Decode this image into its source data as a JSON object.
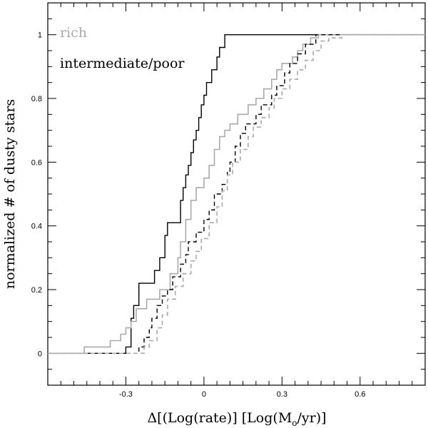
{
  "chart_data": {
    "type": "line",
    "xlabel_parts": [
      "Δ[(Log(rate)] [Log(M",
      "o",
      "/yr)]"
    ],
    "ylabel": "normalized # of dusty stars",
    "xlim": [
      -0.6,
      0.85
    ],
    "ylim": [
      -0.1,
      1.1
    ],
    "x_ticks": [
      -0.3,
      0,
      0.3,
      0.6
    ],
    "x_tick_labels": [
      "-0.3",
      "0",
      "0.3",
      "0.6"
    ],
    "y_ticks": [
      0,
      0.2,
      0.4,
      0.6,
      0.8,
      1
    ],
    "y_tick_labels": [
      "0",
      "0.2",
      "0.4",
      "0.6",
      "0.8",
      "1"
    ],
    "legend": [
      {
        "label": "rich",
        "color": "#aaaaaa"
      },
      {
        "label": "intermediate/poor",
        "color": "#000000"
      }
    ],
    "series": [
      {
        "label_ref": "intermediate/poor",
        "color": "#000000",
        "style": "solid",
        "points": [
          [
            -0.6,
            0
          ],
          [
            -0.3,
            0
          ],
          [
            -0.3,
            0.02
          ],
          [
            -0.28,
            0.02
          ],
          [
            -0.28,
            0.11
          ],
          [
            -0.27,
            0.11
          ],
          [
            -0.27,
            0.15
          ],
          [
            -0.25,
            0.15
          ],
          [
            -0.25,
            0.22
          ],
          [
            -0.19,
            0.22
          ],
          [
            -0.19,
            0.26
          ],
          [
            -0.17,
            0.26
          ],
          [
            -0.17,
            0.3
          ],
          [
            -0.15,
            0.3
          ],
          [
            -0.15,
            0.37
          ],
          [
            -0.14,
            0.37
          ],
          [
            -0.14,
            0.41
          ],
          [
            -0.09,
            0.41
          ],
          [
            -0.09,
            0.48
          ],
          [
            -0.08,
            0.48
          ],
          [
            -0.08,
            0.52
          ],
          [
            -0.07,
            0.52
          ],
          [
            -0.07,
            0.56
          ],
          [
            -0.06,
            0.56
          ],
          [
            -0.06,
            0.59
          ],
          [
            -0.05,
            0.59
          ],
          [
            -0.05,
            0.63
          ],
          [
            -0.04,
            0.63
          ],
          [
            -0.04,
            0.67
          ],
          [
            -0.03,
            0.67
          ],
          [
            -0.03,
            0.7
          ],
          [
            -0.02,
            0.7
          ],
          [
            -0.02,
            0.74
          ],
          [
            -0.01,
            0.74
          ],
          [
            -0.01,
            0.78
          ],
          [
            0.0,
            0.78
          ],
          [
            0.0,
            0.81
          ],
          [
            0.01,
            0.81
          ],
          [
            0.01,
            0.85
          ],
          [
            0.03,
            0.85
          ],
          [
            0.03,
            0.89
          ],
          [
            0.05,
            0.89
          ],
          [
            0.05,
            0.93
          ],
          [
            0.06,
            0.93
          ],
          [
            0.06,
            0.96
          ],
          [
            0.08,
            0.96
          ],
          [
            0.08,
            1.0
          ],
          [
            0.85,
            1.0
          ]
        ]
      },
      {
        "label_ref": "rich",
        "color": "#aaaaaa",
        "style": "solid",
        "points": [
          [
            -0.6,
            0
          ],
          [
            -0.46,
            0
          ],
          [
            -0.46,
            0.02
          ],
          [
            -0.36,
            0.02
          ],
          [
            -0.36,
            0.04
          ],
          [
            -0.32,
            0.04
          ],
          [
            -0.32,
            0.06
          ],
          [
            -0.3,
            0.06
          ],
          [
            -0.3,
            0.08
          ],
          [
            -0.28,
            0.08
          ],
          [
            -0.28,
            0.1
          ],
          [
            -0.26,
            0.1
          ],
          [
            -0.26,
            0.14
          ],
          [
            -0.22,
            0.14
          ],
          [
            -0.22,
            0.17
          ],
          [
            -0.17,
            0.17
          ],
          [
            -0.17,
            0.2
          ],
          [
            -0.13,
            0.2
          ],
          [
            -0.13,
            0.25
          ],
          [
            -0.1,
            0.25
          ],
          [
            -0.1,
            0.3
          ],
          [
            -0.09,
            0.3
          ],
          [
            -0.09,
            0.35
          ],
          [
            -0.07,
            0.35
          ],
          [
            -0.07,
            0.42
          ],
          [
            -0.05,
            0.42
          ],
          [
            -0.05,
            0.48
          ],
          [
            -0.03,
            0.48
          ],
          [
            -0.03,
            0.52
          ],
          [
            0.0,
            0.52
          ],
          [
            0.0,
            0.55
          ],
          [
            0.02,
            0.55
          ],
          [
            0.02,
            0.59
          ],
          [
            0.04,
            0.59
          ],
          [
            0.04,
            0.64
          ],
          [
            0.06,
            0.64
          ],
          [
            0.06,
            0.68
          ],
          [
            0.08,
            0.68
          ],
          [
            0.08,
            0.7
          ],
          [
            0.1,
            0.7
          ],
          [
            0.1,
            0.72
          ],
          [
            0.13,
            0.72
          ],
          [
            0.13,
            0.75
          ],
          [
            0.17,
            0.75
          ],
          [
            0.17,
            0.78
          ],
          [
            0.2,
            0.78
          ],
          [
            0.2,
            0.8
          ],
          [
            0.23,
            0.8
          ],
          [
            0.23,
            0.83
          ],
          [
            0.26,
            0.83
          ],
          [
            0.26,
            0.86
          ],
          [
            0.28,
            0.86
          ],
          [
            0.28,
            0.89
          ],
          [
            0.3,
            0.89
          ],
          [
            0.3,
            0.91
          ],
          [
            0.34,
            0.91
          ],
          [
            0.34,
            0.93
          ],
          [
            0.36,
            0.93
          ],
          [
            0.36,
            0.95
          ],
          [
            0.38,
            0.95
          ],
          [
            0.38,
            0.97
          ],
          [
            0.41,
            0.97
          ],
          [
            0.41,
            0.99
          ],
          [
            0.44,
            0.99
          ],
          [
            0.44,
            1.0
          ],
          [
            0.85,
            1.0
          ]
        ]
      },
      {
        "label_ref": "intermediate/poor",
        "color": "#000000",
        "style": "dashed",
        "points": [
          [
            -0.6,
            0
          ],
          [
            -0.25,
            0
          ],
          [
            -0.25,
            0.02
          ],
          [
            -0.23,
            0.02
          ],
          [
            -0.23,
            0.05
          ],
          [
            -0.21,
            0.05
          ],
          [
            -0.21,
            0.08
          ],
          [
            -0.2,
            0.08
          ],
          [
            -0.2,
            0.11
          ],
          [
            -0.18,
            0.11
          ],
          [
            -0.18,
            0.15
          ],
          [
            -0.16,
            0.15
          ],
          [
            -0.16,
            0.18
          ],
          [
            -0.14,
            0.18
          ],
          [
            -0.14,
            0.2
          ],
          [
            -0.12,
            0.2
          ],
          [
            -0.12,
            0.24
          ],
          [
            -0.09,
            0.24
          ],
          [
            -0.09,
            0.28
          ],
          [
            -0.07,
            0.28
          ],
          [
            -0.07,
            0.31
          ],
          [
            -0.06,
            0.31
          ],
          [
            -0.06,
            0.35
          ],
          [
            -0.03,
            0.35
          ],
          [
            -0.03,
            0.38
          ],
          [
            0.0,
            0.38
          ],
          [
            0.0,
            0.42
          ],
          [
            0.02,
            0.42
          ],
          [
            0.02,
            0.45
          ],
          [
            0.04,
            0.45
          ],
          [
            0.04,
            0.5
          ],
          [
            0.07,
            0.5
          ],
          [
            0.07,
            0.53
          ],
          [
            0.09,
            0.53
          ],
          [
            0.09,
            0.57
          ],
          [
            0.1,
            0.57
          ],
          [
            0.1,
            0.6
          ],
          [
            0.12,
            0.6
          ],
          [
            0.12,
            0.65
          ],
          [
            0.14,
            0.65
          ],
          [
            0.14,
            0.69
          ],
          [
            0.16,
            0.69
          ],
          [
            0.16,
            0.72
          ],
          [
            0.2,
            0.72
          ],
          [
            0.2,
            0.75
          ],
          [
            0.22,
            0.75
          ],
          [
            0.22,
            0.78
          ],
          [
            0.26,
            0.78
          ],
          [
            0.26,
            0.81
          ],
          [
            0.28,
            0.81
          ],
          [
            0.28,
            0.84
          ],
          [
            0.31,
            0.84
          ],
          [
            0.31,
            0.88
          ],
          [
            0.33,
            0.88
          ],
          [
            0.33,
            0.91
          ],
          [
            0.36,
            0.91
          ],
          [
            0.36,
            0.94
          ],
          [
            0.39,
            0.94
          ],
          [
            0.39,
            0.97
          ],
          [
            0.43,
            0.97
          ],
          [
            0.43,
            1.0
          ],
          [
            0.85,
            1.0
          ]
        ]
      },
      {
        "label_ref": "rich",
        "color": "#aaaaaa",
        "style": "dashed",
        "points": [
          [
            -0.6,
            0
          ],
          [
            -0.23,
            0
          ],
          [
            -0.23,
            0.02
          ],
          [
            -0.21,
            0.02
          ],
          [
            -0.21,
            0.04
          ],
          [
            -0.18,
            0.04
          ],
          [
            -0.18,
            0.08
          ],
          [
            -0.16,
            0.08
          ],
          [
            -0.16,
            0.12
          ],
          [
            -0.14,
            0.12
          ],
          [
            -0.14,
            0.17
          ],
          [
            -0.11,
            0.17
          ],
          [
            -0.11,
            0.21
          ],
          [
            -0.08,
            0.21
          ],
          [
            -0.08,
            0.25
          ],
          [
            -0.05,
            0.25
          ],
          [
            -0.05,
            0.29
          ],
          [
            -0.03,
            0.29
          ],
          [
            -0.03,
            0.32
          ],
          [
            -0.01,
            0.32
          ],
          [
            -0.01,
            0.36
          ],
          [
            0.02,
            0.36
          ],
          [
            0.02,
            0.41
          ],
          [
            0.05,
            0.41
          ],
          [
            0.05,
            0.46
          ],
          [
            0.07,
            0.46
          ],
          [
            0.07,
            0.51
          ],
          [
            0.09,
            0.51
          ],
          [
            0.09,
            0.56
          ],
          [
            0.11,
            0.56
          ],
          [
            0.11,
            0.6
          ],
          [
            0.14,
            0.6
          ],
          [
            0.14,
            0.64
          ],
          [
            0.17,
            0.64
          ],
          [
            0.17,
            0.68
          ],
          [
            0.19,
            0.68
          ],
          [
            0.19,
            0.71
          ],
          [
            0.22,
            0.71
          ],
          [
            0.22,
            0.74
          ],
          [
            0.25,
            0.74
          ],
          [
            0.25,
            0.77
          ],
          [
            0.27,
            0.77
          ],
          [
            0.27,
            0.8
          ],
          [
            0.3,
            0.8
          ],
          [
            0.3,
            0.83
          ],
          [
            0.33,
            0.83
          ],
          [
            0.33,
            0.86
          ],
          [
            0.36,
            0.86
          ],
          [
            0.36,
            0.89
          ],
          [
            0.39,
            0.89
          ],
          [
            0.39,
            0.92
          ],
          [
            0.42,
            0.92
          ],
          [
            0.42,
            0.95
          ],
          [
            0.45,
            0.95
          ],
          [
            0.45,
            0.98
          ],
          [
            0.48,
            0.98
          ],
          [
            0.48,
            0.99
          ],
          [
            0.53,
            0.99
          ],
          [
            0.53,
            1.0
          ],
          [
            0.85,
            1.0
          ]
        ]
      }
    ]
  }
}
